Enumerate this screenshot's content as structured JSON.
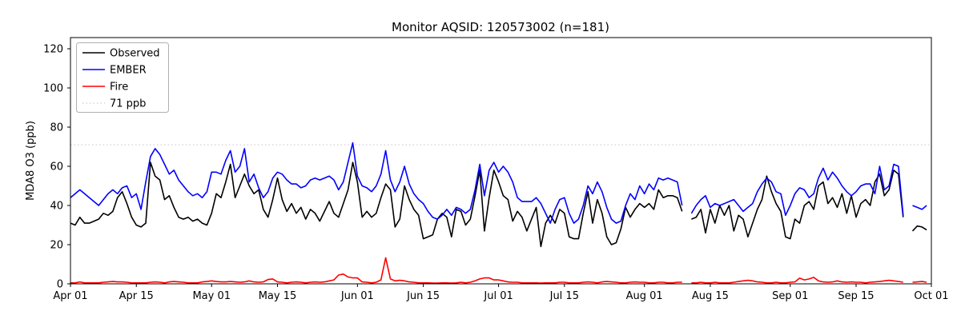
{
  "chart_data": {
    "type": "line",
    "title": "Monitor AQSID: 120573002 (n=181)",
    "ylabel": "MDA8 O3 (ppb)",
    "xlabel": "",
    "ylim": [
      0,
      126
    ],
    "yticks": [
      0,
      20,
      40,
      60,
      80,
      100,
      120
    ],
    "x_start_date": "Apr 01",
    "x_end_date": "Oct 01",
    "days_total": 183,
    "x_tick_labels": [
      "Apr 01",
      "Apr 15",
      "May 01",
      "May 15",
      "Jun 01",
      "Jun 15",
      "Jul 01",
      "Jul 15",
      "Aug 01",
      "Aug 15",
      "Sep 01",
      "Sep 15",
      "Oct 01"
    ],
    "x_tick_days": [
      0,
      14,
      30,
      44,
      61,
      75,
      91,
      105,
      122,
      136,
      153,
      167,
      183
    ],
    "grid": false,
    "legend_position": "upper left",
    "threshold": {
      "value": 71,
      "label": "71 ppb",
      "color": "#cccccc",
      "style": "dotted"
    },
    "missing_days": [
      "Aug 10",
      "Sep 26"
    ],
    "series": [
      {
        "name": "Observed",
        "color": "#000000",
        "values": [
          31,
          30,
          34,
          31,
          31,
          32,
          33,
          36,
          35,
          37,
          44,
          47,
          41,
          34,
          30,
          29,
          31,
          62,
          55,
          53,
          43,
          45,
          39,
          34,
          33,
          34,
          32,
          33,
          31,
          30,
          36,
          46,
          44,
          52,
          61,
          44,
          50,
          56,
          50,
          46,
          48,
          38,
          34,
          43,
          54,
          43,
          37,
          41,
          36,
          39,
          33,
          38,
          36,
          32,
          37,
          42,
          36,
          34,
          41,
          48,
          62,
          52,
          34,
          37,
          34,
          36,
          44,
          51,
          48,
          29,
          33,
          50,
          43,
          38,
          35,
          23,
          24,
          25,
          33,
          36,
          34,
          24,
          38,
          37,
          30,
          33,
          45,
          58,
          27,
          44,
          58,
          52,
          45,
          43,
          32,
          37,
          34,
          27,
          33,
          39,
          19,
          31,
          35,
          31,
          38,
          36,
          24,
          23,
          23,
          36,
          47,
          31,
          43,
          36,
          24,
          20,
          21,
          28,
          39,
          34,
          38,
          41,
          39,
          41,
          38,
          48,
          44,
          45,
          45,
          44,
          37,
          null,
          33,
          34,
          38,
          26,
          38,
          31,
          40,
          35,
          40,
          27,
          35,
          33,
          24,
          31,
          38,
          43,
          55,
          47,
          41,
          37,
          24,
          23,
          33,
          31,
          40,
          42,
          38,
          50,
          52,
          41,
          44,
          39,
          46,
          36,
          45,
          34,
          41,
          43,
          40,
          52,
          56,
          45,
          48,
          58,
          56,
          34,
          null,
          27,
          29.5,
          29,
          27.5
        ]
      },
      {
        "name": "EMBER",
        "color": "#0000ff",
        "values": [
          44,
          46,
          48,
          46,
          44,
          42,
          40,
          43,
          46,
          48,
          46,
          49,
          50,
          44,
          46,
          38,
          52,
          65,
          69,
          66,
          61,
          56,
          58,
          53,
          50,
          47,
          45,
          46,
          44,
          47,
          57,
          57,
          56,
          63,
          68,
          57,
          60,
          69,
          52,
          56,
          49,
          44,
          47,
          54,
          57,
          56,
          53,
          51,
          51,
          49,
          50,
          53,
          54,
          53,
          54,
          55,
          53,
          48,
          52,
          62,
          72,
          55,
          50,
          49,
          47,
          50,
          56,
          68,
          53,
          47,
          52,
          60,
          51,
          46,
          43,
          41,
          37,
          34,
          33,
          35,
          38,
          35,
          39,
          38,
          36,
          38,
          48,
          61,
          45,
          58,
          62,
          57,
          60,
          57,
          52,
          44,
          42,
          42,
          42,
          44,
          41,
          36,
          31,
          38,
          43,
          44,
          36,
          31,
          33,
          40,
          50,
          46,
          52,
          47,
          39,
          33,
          31,
          32,
          40,
          46,
          43,
          50,
          46,
          51,
          48,
          54,
          53,
          54,
          53,
          52,
          40,
          null,
          36,
          40,
          43,
          45,
          39,
          41,
          40,
          41,
          42,
          43,
          40,
          37,
          39,
          41,
          47,
          51,
          54,
          52,
          47,
          46,
          35,
          40,
          46,
          49,
          48,
          44,
          46,
          54,
          59,
          53,
          57,
          54,
          50,
          47,
          45,
          47,
          50,
          51,
          51,
          46,
          60,
          48,
          50,
          61,
          60,
          35,
          null,
          40,
          39,
          38,
          40
        ]
      },
      {
        "name": "Fire",
        "color": "#ff0000",
        "values": [
          0.5,
          0.5,
          1,
          0.5,
          0.5,
          0.5,
          0.5,
          0.8,
          1,
          1.2,
          1,
          1,
          0.8,
          0.5,
          0.5,
          0.5,
          0.5,
          0.8,
          1,
          0.8,
          0.5,
          1,
          1.2,
          1,
          0.8,
          0.5,
          0.5,
          0.5,
          1,
          1.2,
          1.5,
          1.2,
          1,
          1,
          1.2,
          1,
          0.8,
          1,
          1.5,
          1,
          0.8,
          1,
          2.2,
          2.5,
          1,
          0.8,
          0.5,
          0.8,
          1,
          0.8,
          0.5,
          0.8,
          1,
          0.8,
          1,
          1.5,
          2,
          4.5,
          5,
          3.5,
          3,
          3,
          1,
          0.8,
          0.5,
          0.8,
          2,
          13.3,
          2.5,
          1.5,
          1.8,
          1.5,
          1,
          0.8,
          0.5,
          0.5,
          0.5,
          0.4,
          0.4,
          0.5,
          0.5,
          0.4,
          0.5,
          0.8,
          0.5,
          0.8,
          1.5,
          2.5,
          3,
          3,
          2,
          2,
          1.5,
          1,
          0.8,
          0.8,
          0.5,
          0.5,
          0.5,
          0.5,
          0.4,
          0.5,
          0.5,
          0.5,
          0.8,
          0.8,
          0.5,
          0.5,
          0.5,
          0.8,
          1,
          0.8,
          0.5,
          1,
          1.2,
          1,
          0.8,
          0.5,
          0.5,
          0.8,
          1,
          0.8,
          0.8,
          0.5,
          0.5,
          0.8,
          0.8,
          0.5,
          0.5,
          0.8,
          0.8,
          null,
          0.5,
          0.5,
          0.8,
          0.5,
          0.5,
          0.8,
          0.5,
          0.5,
          0.5,
          0.8,
          1.2,
          1.5,
          1.8,
          1.5,
          1,
          0.8,
          0.5,
          0.5,
          0.8,
          0.5,
          0.5,
          0.8,
          1,
          2.9,
          2,
          2.5,
          3.3,
          1.5,
          1,
          0.8,
          1,
          1.5,
          1,
          0.8,
          1,
          0.8,
          0.8,
          0.5,
          0.8,
          1,
          1.2,
          1.5,
          1.8,
          1.5,
          1.2,
          0.8,
          null,
          0.8,
          1,
          1.2,
          0.8
        ]
      }
    ]
  }
}
